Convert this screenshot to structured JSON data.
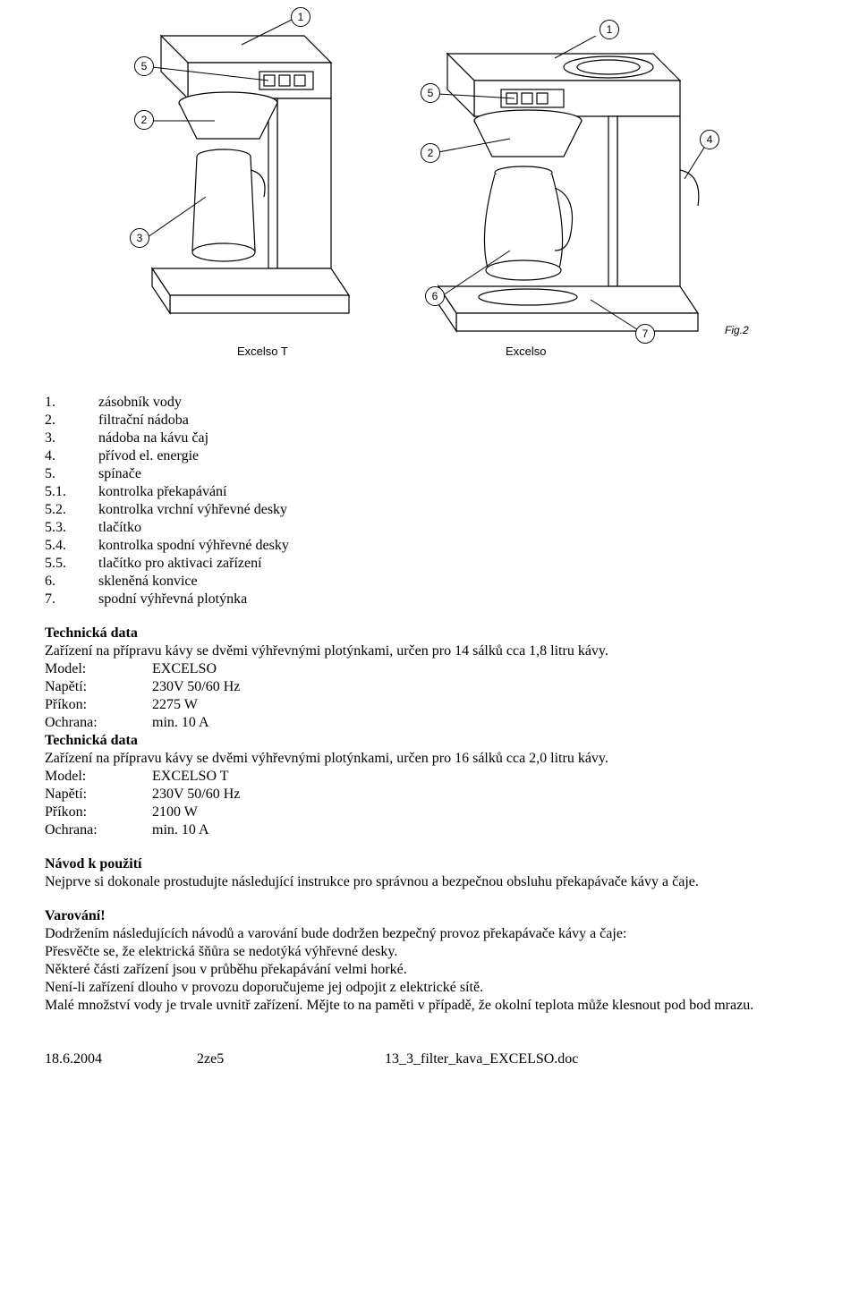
{
  "diagram": {
    "left_label": "Excelso T",
    "right_label": "Excelso",
    "fig_label": "Fig.2",
    "callouts_left": [
      "1",
      "2",
      "3",
      "5"
    ],
    "callouts_right": [
      "1",
      "2",
      "4",
      "5",
      "6",
      "7"
    ]
  },
  "parts": [
    {
      "n": "1.",
      "t": "zásobník vody"
    },
    {
      "n": "2.",
      "t": "filtrační nádoba"
    },
    {
      "n": "3.",
      "t": "nádoba na kávu čaj"
    },
    {
      "n": "4.",
      "t": "přívod el. energie"
    },
    {
      "n": "5.",
      "t": "spínače"
    },
    {
      "n": "5.1.",
      "t": "kontrolka překapávání"
    },
    {
      "n": "5.2.",
      "t": "kontrolka vrchní výhřevné desky"
    },
    {
      "n": "5.3.",
      "t": "tlačítko"
    },
    {
      "n": "5.4.",
      "t": "kontrolka spodní výhřevné desky"
    },
    {
      "n": "5.5.",
      "t": "tlačítko pro aktivaci zařízení"
    },
    {
      "n": "6.",
      "t": "skleněná konvice"
    },
    {
      "n": "7.",
      "t": "spodní výhřevná plotýnka"
    }
  ],
  "tech1": {
    "heading": "Technická data",
    "desc": "Zařízení na přípravu kávy se dvěmi výhřevnými plotýnkami, určen pro 14 sálků cca 1,8 litru kávy.",
    "rows": [
      {
        "k": "Model:",
        "v": "EXCELSO"
      },
      {
        "k": "Napětí:",
        "v": "230V 50/60 Hz"
      },
      {
        "k": "Příkon:",
        "v": "2275 W"
      },
      {
        "k": "Ochrana:",
        "v": "min. 10 A"
      }
    ]
  },
  "tech2": {
    "heading": "Technická data",
    "desc": "Zařízení na přípravu kávy se dvěmi výhřevnými plotýnkami, určen pro 16 sálků cca 2,0 litru kávy.",
    "rows": [
      {
        "k": "Model:",
        "v": "EXCELSO T"
      },
      {
        "k": "Napětí:",
        "v": "230V 50/60 Hz"
      },
      {
        "k": "Příkon:",
        "v": "2100 W"
      },
      {
        "k": "Ochrana:",
        "v": "min. 10 A"
      }
    ]
  },
  "usage": {
    "heading": "Návod k použití",
    "text": "Nejprve si dokonale prostudujte následující instrukce pro správnou a bezpečnou obsluhu překapávače kávy a čaje."
  },
  "warning": {
    "heading": "Varování!",
    "lines": [
      "Dodržením následujících návodů a varování bude dodržen bezpečný provoz překapávače kávy a čaje:",
      "Přesvěčte se, že elektrická šňůra se nedotýká výhřevné desky.",
      "Některé části zařízení jsou v průběhu překapávání velmi horké.",
      "Není-li zařízení dlouho v provozu doporučujeme jej odpojit z elektrické sítě.",
      "Malé množství vody je trvale uvnitř zařízení. Mějte to na paměti v případě, že okolní teplota může klesnout pod bod mrazu."
    ]
  },
  "footer": {
    "date": "18.6.2004",
    "page": "2ze5",
    "file": "13_3_filter_kava_EXCELSO.doc"
  }
}
